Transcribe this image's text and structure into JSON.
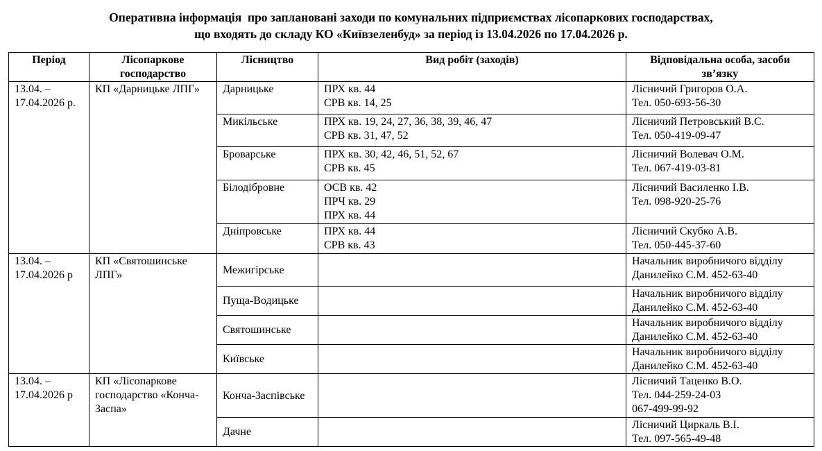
{
  "title": {
    "line1": "Оперативна інформація  про заплановані заходи по комунальних підприємствах лісопаркових господарствах,",
    "line2": "що входять до складу КО «Київзеленбуд» за період із 13.04.2026 по 17.04.2026 р."
  },
  "headers": [
    "Період",
    "Лісопаркове господарство",
    "Лісництво",
    "Вид робіт (заходів)",
    "Відповідальна особа, засоби зв’язку"
  ],
  "groups": [
    {
      "period": "13.04. – 17.04.2026 р.",
      "enterprise": "КП «Дарницьке ЛПГ»",
      "rows": [
        {
          "forestry": "Дарницьке",
          "works": [
            "ПРХ кв. 44",
            "СРВ кв. 14, 25"
          ],
          "contact": [
            "Лісничий Григоров О.А.",
            "Тел. 050-693-56-30"
          ]
        },
        {
          "forestry": "Микільське",
          "works": [
            "ПРХ кв. 19, 24, 27, 36, 38, 39, 46, 47",
            "СРВ кв. 31, 47, 52"
          ],
          "contact": [
            "Лісничий Петровський В.С.",
            "Тел. 050-419-09-47"
          ]
        },
        {
          "forestry": "Броварське",
          "works": [
            "ПРХ кв. 30, 42, 46, 51, 52, 67",
            "СРВ кв. 45"
          ],
          "contact": [
            "Лісничий Волевач О.М.",
            "Тел. 067-419-03-81"
          ]
        },
        {
          "forestry": "Білодібровне",
          "works": [
            "ОСВ кв. 42",
            "ПРЧ кв. 29",
            "ПРХ кв. 44"
          ],
          "contact": [
            "Лісничий Василенко І.В.",
            "Тел. 098-920-25-76"
          ]
        },
        {
          "forestry": "Дніпровське",
          "works": [
            "ПРХ кв. 44",
            "СРВ кв. 43"
          ],
          "contact": [
            "Лісничий Скубко А.В.",
            "Тел. 050-445-37-60"
          ]
        }
      ]
    },
    {
      "period": "13.04. – 17.04.2026 р",
      "enterprise": "КП «Святошинське ЛПГ»",
      "rows": [
        {
          "forestry": "Межигірське",
          "works": [],
          "contact": [
            "Начальник виробничого відділу",
            "Данилейко С.М. 452-63-40"
          ]
        },
        {
          "forestry": "Пуща-Водицьке",
          "works": [],
          "contact": [
            "Начальник виробничого відділу",
            "Данилейко С.М. 452-63-40"
          ]
        },
        {
          "forestry": "Святошинське",
          "works": [],
          "contact": [
            "Начальник виробничого відділу",
            "Данилейко С.М. 452-63-40"
          ]
        },
        {
          "forestry": "Київське",
          "works": [],
          "contact": [
            "Начальник виробничого відділу",
            "Данилейко С.М. 452-63-40"
          ]
        }
      ]
    },
    {
      "period": "13.04. – 17.04.2026 р",
      "enterprise": "КП «Лісопаркове господарство «Конча-Заспа»",
      "rows": [
        {
          "forestry": "Конча-Заспівське",
          "works": [],
          "contact": [
            "Лісничий Таценко В.О.",
            "Тел. 044-259-24-03",
            "067-499-99-92"
          ]
        },
        {
          "forestry": "Дачне",
          "works": [],
          "contact": [
            "Лісничий Циркаль В.І.",
            "Тел. 097-565-49-48"
          ]
        }
      ]
    }
  ]
}
